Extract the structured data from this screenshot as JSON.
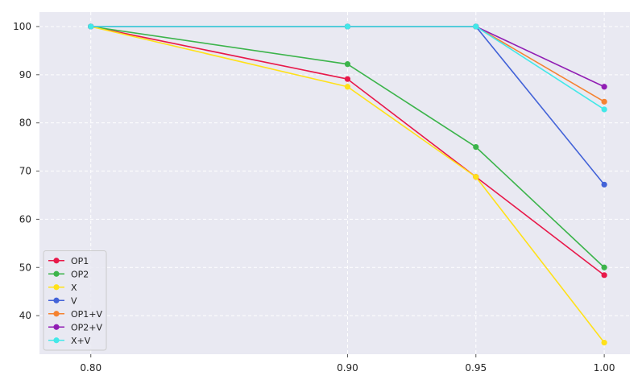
{
  "chart_data": {
    "type": "line",
    "title": "",
    "xlabel": "",
    "ylabel": "",
    "x": [
      0.8,
      0.9,
      0.95,
      1.0
    ],
    "x_tick_labels": [
      "0.80",
      "0.90",
      "0.95",
      "1.00"
    ],
    "y_ticks": [
      40,
      50,
      60,
      70,
      80,
      90,
      100
    ],
    "y_tick_labels": [
      "40",
      "50",
      "60",
      "70",
      "80",
      "90",
      "100"
    ],
    "xlim": [
      0.78,
      1.01
    ],
    "ylim": [
      32,
      103
    ],
    "grid": true,
    "legend_position": "lower-left",
    "background_color": "#e9e9f2",
    "grid_color": "#ffffff",
    "series": [
      {
        "name": "OP1",
        "color": "#e8194a",
        "values": [
          100,
          89.1,
          68.8,
          48.4
        ]
      },
      {
        "name": "OP2",
        "color": "#3cb44b",
        "values": [
          100,
          92.2,
          75.0,
          50.0
        ]
      },
      {
        "name": "X",
        "color": "#ffe119",
        "values": [
          100,
          87.5,
          68.8,
          34.4
        ]
      },
      {
        "name": "V",
        "color": "#4363d8",
        "values": [
          100,
          100,
          100,
          67.2
        ]
      },
      {
        "name": "OP1+V",
        "color": "#f58231",
        "values": [
          100,
          100,
          100,
          84.4
        ]
      },
      {
        "name": "OP2+V",
        "color": "#911eb4",
        "values": [
          100,
          100,
          100,
          87.5
        ]
      },
      {
        "name": "X+V",
        "color": "#42e8e8",
        "values": [
          100,
          100,
          100,
          82.8
        ]
      }
    ]
  }
}
